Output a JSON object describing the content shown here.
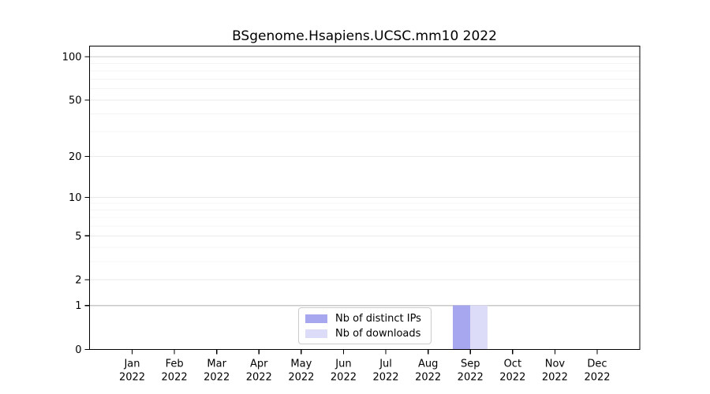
{
  "chart_data": {
    "type": "bar",
    "title": "BSgenome.Hsapiens.UCSC.mm10 2022",
    "categories": [
      "Jan",
      "Feb",
      "Mar",
      "Apr",
      "May",
      "Jun",
      "Jul",
      "Aug",
      "Sep",
      "Oct",
      "Nov",
      "Dec"
    ],
    "x_tick_year": "2022",
    "series": [
      {
        "name": "Nb of distinct IPs",
        "color": "#a7a7f0",
        "values": [
          0,
          0,
          0,
          0,
          0,
          0,
          0,
          0,
          1,
          0,
          0,
          0
        ]
      },
      {
        "name": "Nb of downloads",
        "color": "#dcdcf8",
        "values": [
          0,
          0,
          0,
          0,
          0,
          0,
          0,
          0,
          1,
          0,
          0,
          0
        ]
      }
    ],
    "y_axis": {
      "scale": "log1p",
      "tick_values": [
        0,
        1,
        2,
        5,
        10,
        20,
        50,
        100
      ],
      "minor_tick_values": [
        3,
        4,
        6,
        7,
        8,
        9,
        30,
        40,
        60,
        70,
        80,
        90
      ],
      "range": [
        0,
        119
      ]
    },
    "grid": {
      "minor_color": "#f4f4f4",
      "major_color": "#eaeaea",
      "emphasis_color": "#c8c8c8",
      "emphasis_values": [
        1,
        100
      ]
    },
    "legend": {
      "position": "inside-bottom-center"
    },
    "axis_color": "#000000"
  }
}
